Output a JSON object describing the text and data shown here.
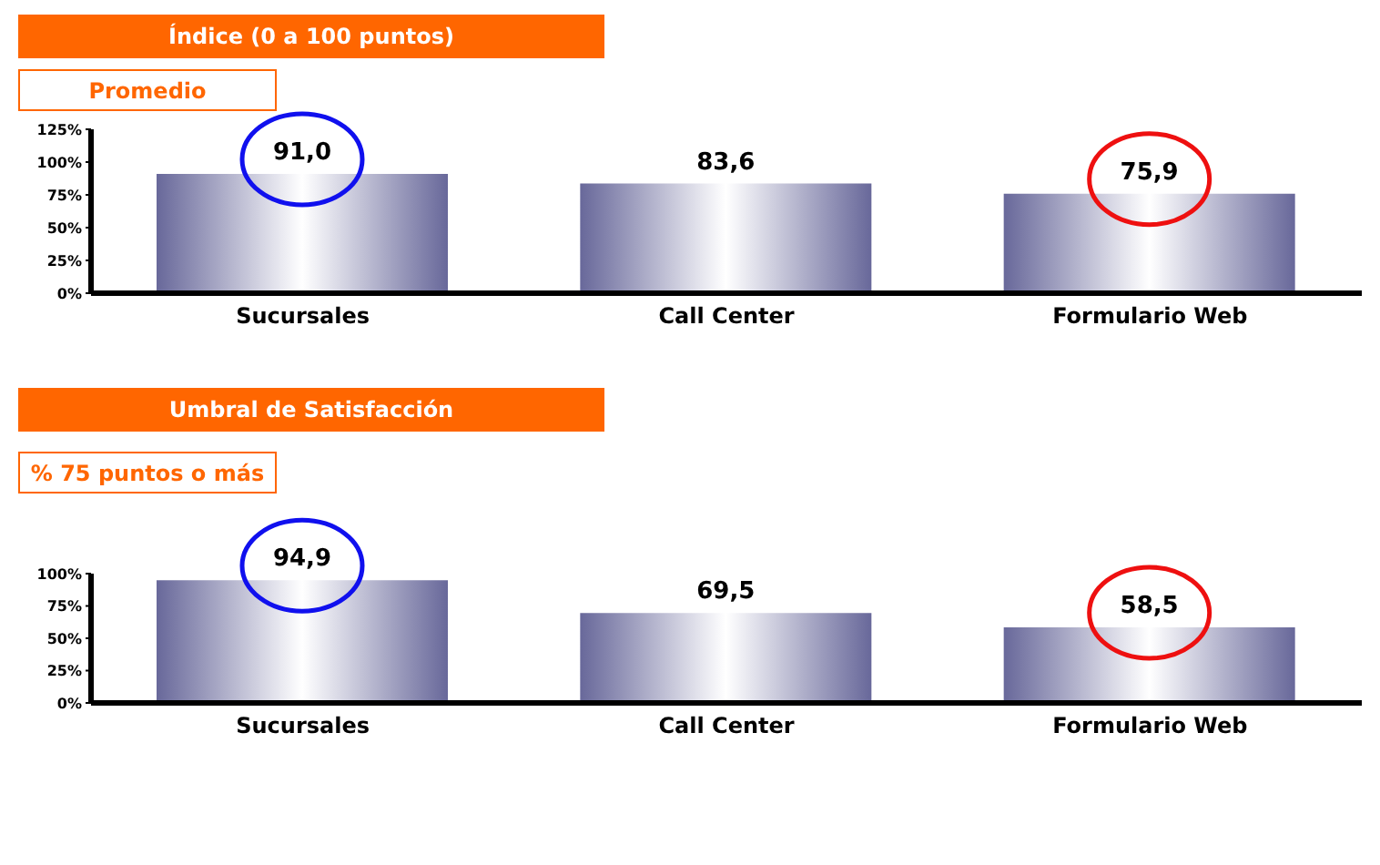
{
  "chart_data": [
    {
      "type": "bar",
      "title": "Índice (0 a 100 puntos)",
      "subtitle": "Promedio",
      "categories": [
        "Sucursales",
        "Call Center",
        "Formulario Web"
      ],
      "values": [
        91.0,
        83.6,
        75.9
      ],
      "value_labels": [
        "91,0",
        "83,6",
        "75,9"
      ],
      "color": "#68689a",
      "ylim": [
        0,
        125
      ],
      "yticks": [
        {
          "value": 0,
          "label": "0%"
        },
        {
          "value": 25,
          "label": "25%"
        },
        {
          "value": 50,
          "label": "50%"
        },
        {
          "value": 75,
          "label": "75%"
        },
        {
          "value": 100,
          "label": "100%"
        },
        {
          "value": 125,
          "label": "125%"
        }
      ]
    },
    {
      "type": "bar",
      "title": "Umbral de Satisfacción",
      "subtitle": "% 75 puntos o más",
      "categories": [
        "Sucursales",
        "Call Center",
        "Formulario Web"
      ],
      "values": [
        94.9,
        69.5,
        58.5
      ],
      "value_labels": [
        "94,9",
        "69,5",
        "58,5"
      ],
      "color": "#68689a",
      "ylim": [
        0,
        100
      ],
      "yticks": [
        {
          "value": 0,
          "label": "0%"
        },
        {
          "value": 25,
          "label": "25%"
        },
        {
          "value": 50,
          "label": "50%"
        },
        {
          "value": 75,
          "label": "75%"
        },
        {
          "value": 100,
          "label": "100%"
        }
      ]
    }
  ]
}
